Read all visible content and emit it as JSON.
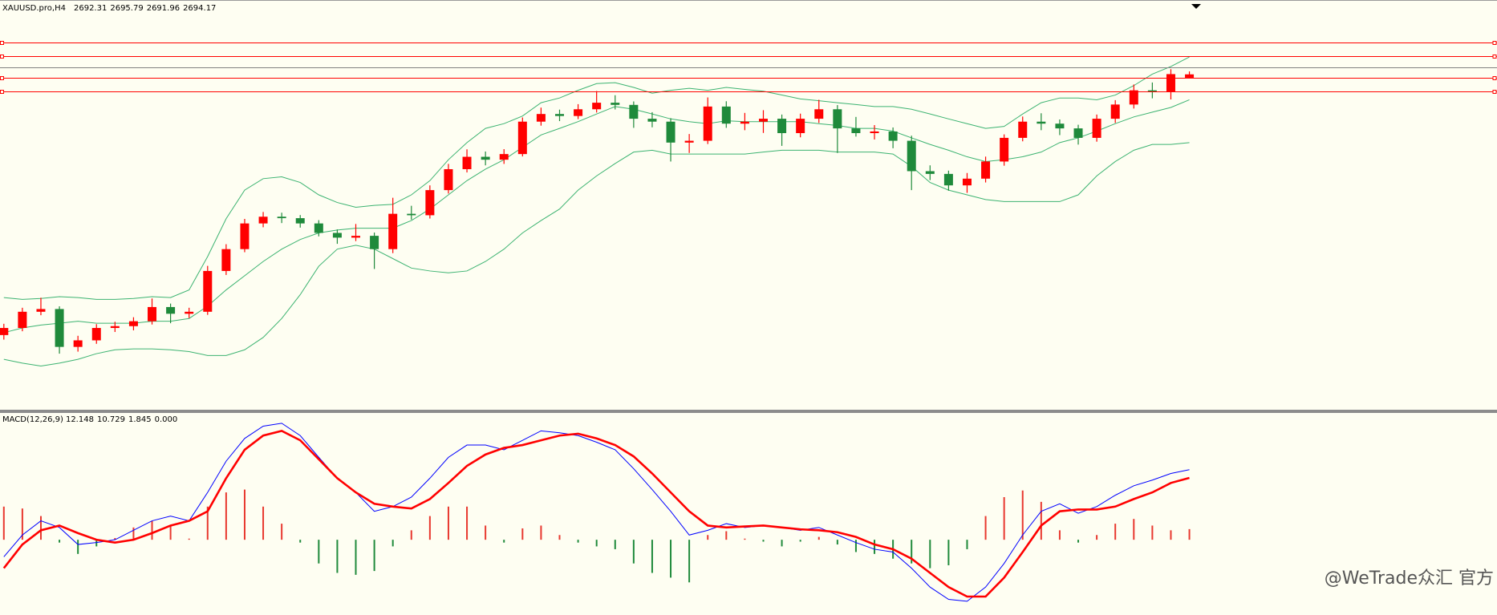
{
  "chart_data": [
    {
      "type": "candlestick",
      "symbol": "XAUUSD.pro,H4",
      "open": [
        2551.0,
        2554.9,
        2563.8,
        2565.3,
        2544.5,
        2548.1,
        2554.9,
        2555.9,
        2558.6,
        2566.4,
        2562.7,
        2563.8,
        2586.2,
        2598.2,
        2612.3,
        2616.0,
        2615.2,
        2612.3,
        2607.1,
        2604.5,
        2605.5,
        2598.2,
        2617.6,
        2616.8,
        2630.6,
        2642.1,
        2648.9,
        2647.3,
        2650.4,
        2668.2,
        2672.4,
        2671.3,
        2675.0,
        2678.6,
        2677.4,
        2669.8,
        2668.2,
        2656.7,
        2657.7,
        2676.5,
        2667.1,
        2668.2,
        2669.8,
        2661.9,
        2669.8,
        2675.0,
        2664.5,
        2661.9,
        2662.8,
        2657.7,
        2641.0,
        2639.5,
        2633.2,
        2636.9,
        2646.3,
        2659.3,
        2668.2,
        2667.1,
        2664.5,
        2659.3,
        2669.8,
        2677.6,
        2685.4,
        2684.6,
        2692.31
      ],
      "high": [
        2557.2,
        2566.0,
        2571.5,
        2566.8,
        2550.6,
        2557.0,
        2558.3,
        2560.8,
        2571.1,
        2568.3,
        2566.0,
        2589.0,
        2600.9,
        2614.8,
        2618.6,
        2618.2,
        2616.9,
        2614.1,
        2609.0,
        2612.0,
        2607.3,
        2626.4,
        2622.0,
        2633.2,
        2645.0,
        2653.0,
        2651.8,
        2653.1,
        2670.5,
        2675.9,
        2674.8,
        2677.8,
        2685.0,
        2682.7,
        2679.3,
        2673.4,
        2670.1,
        2661.4,
        2681.5,
        2679.4,
        2673.0,
        2674.5,
        2672.1,
        2672.6,
        2680.2,
        2677.3,
        2670.8,
        2666.3,
        2665.0,
        2660.5,
        2644.2,
        2641.3,
        2640.0,
        2649.0,
        2661.2,
        2671.0,
        2672.8,
        2669.4,
        2666.5,
        2672.1,
        2680.0,
        2688.6,
        2689.7,
        2697.0,
        2695.79
      ],
      "low": [
        2548.5,
        2553.1,
        2561.9,
        2540.8,
        2541.9,
        2546.2,
        2552.7,
        2553.6,
        2556.8,
        2557.5,
        2560.3,
        2562.1,
        2584.0,
        2596.5,
        2610.2,
        2612.5,
        2610.0,
        2605.2,
        2601.1,
        2602.6,
        2587.3,
        2596.0,
        2614.4,
        2615.0,
        2628.7,
        2640.3,
        2644.2,
        2645.0,
        2649.1,
        2666.0,
        2668.5,
        2669.6,
        2673.2,
        2674.9,
        2664.8,
        2665.1,
        2646.3,
        2651.0,
        2655.9,
        2664.8,
        2663.5,
        2662.0,
        2654.9,
        2659.6,
        2667.5,
        2651.0,
        2660.0,
        2658.4,
        2653.6,
        2630.6,
        2636.1,
        2630.3,
        2629.1,
        2634.8,
        2644.0,
        2657.4,
        2663.5,
        2660.8,
        2655.6,
        2657.2,
        2667.5,
        2675.4,
        2681.0,
        2680.4,
        2691.96
      ],
      "close": [
        2554.9,
        2563.8,
        2565.3,
        2544.5,
        2548.1,
        2554.9,
        2555.9,
        2558.6,
        2566.4,
        2562.7,
        2563.8,
        2586.2,
        2598.2,
        2612.3,
        2616.0,
        2615.2,
        2612.3,
        2607.1,
        2604.5,
        2605.5,
        2598.2,
        2617.6,
        2616.8,
        2630.6,
        2642.1,
        2648.9,
        2647.3,
        2650.4,
        2668.2,
        2672.4,
        2671.3,
        2675.0,
        2678.6,
        2677.4,
        2669.8,
        2668.2,
        2656.7,
        2657.7,
        2676.5,
        2667.1,
        2668.2,
        2669.8,
        2661.9,
        2669.8,
        2675.0,
        2664.5,
        2661.9,
        2662.8,
        2657.7,
        2641.0,
        2639.5,
        2633.2,
        2636.9,
        2646.3,
        2659.3,
        2668.2,
        2667.1,
        2664.5,
        2659.3,
        2669.8,
        2677.6,
        2685.4,
        2684.6,
        2694.3,
        2694.17
      ],
      "up_color": "#ff0000",
      "down_color": "#1f8a3b",
      "bands": {
        "color": "#3cb371",
        "upper": [
          2571.6,
          2570.6,
          2571.1,
          2572.1,
          2571.6,
          2570.6,
          2570.6,
          2571.1,
          2572.1,
          2571.6,
          2575.8,
          2594.1,
          2614.9,
          2630.6,
          2636.9,
          2637.9,
          2634.8,
          2628.0,
          2623.8,
          2621.2,
          2622.2,
          2622.8,
          2628.0,
          2635.8,
          2647.3,
          2656.7,
          2664.5,
          2667.1,
          2671.3,
          2678.6,
          2681.2,
          2685.4,
          2689.1,
          2689.6,
          2687.0,
          2683.8,
          2685.4,
          2686.5,
          2685.4,
          2687.0,
          2685.9,
          2684.9,
          2682.8,
          2680.7,
          2679.7,
          2678.6,
          2677.6,
          2676.5,
          2676.5,
          2675.0,
          2672.4,
          2669.7,
          2667.1,
          2664.5,
          2665.6,
          2672.4,
          2678.6,
          2681.2,
          2681.2,
          2680.2,
          2682.8,
          2688.0,
          2694.3,
          2698.5,
          2703.7
        ],
        "middle": [
          2552.3,
          2554.9,
          2556.5,
          2557.5,
          2558.6,
          2557.5,
          2557.5,
          2557.5,
          2558.6,
          2558.6,
          2560.1,
          2566.9,
          2575.8,
          2583.6,
          2591.4,
          2598.2,
          2603.5,
          2607.1,
          2608.7,
          2609.7,
          2609.7,
          2609.7,
          2613.9,
          2620.2,
          2628.0,
          2635.8,
          2642.1,
          2647.3,
          2654.1,
          2660.9,
          2664.5,
          2668.2,
          2672.4,
          2676.5,
          2675.0,
          2672.4,
          2669.7,
          2668.2,
          2667.1,
          2668.7,
          2668.2,
          2668.2,
          2668.2,
          2668.2,
          2667.1,
          2666.1,
          2664.5,
          2664.5,
          2663.0,
          2659.3,
          2655.7,
          2652.5,
          2648.9,
          2646.3,
          2647.3,
          2648.9,
          2651.5,
          2656.7,
          2659.3,
          2663.0,
          2667.1,
          2670.8,
          2673.4,
          2676.0,
          2680.2
        ],
        "lower": [
          2537.7,
          2535.6,
          2534.0,
          2535.6,
          2537.7,
          2540.8,
          2542.9,
          2543.4,
          2543.4,
          2542.9,
          2541.9,
          2539.8,
          2539.8,
          2542.9,
          2549.7,
          2560.1,
          2573.2,
          2588.8,
          2598.2,
          2600.3,
          2598.2,
          2593.0,
          2587.8,
          2586.2,
          2585.2,
          2586.2,
          2591.4,
          2598.2,
          2607.1,
          2613.9,
          2620.2,
          2630.6,
          2638.4,
          2645.2,
          2651.5,
          2652.5,
          2650.4,
          2650.4,
          2650.4,
          2650.4,
          2650.4,
          2651.5,
          2652.5,
          2652.5,
          2652.5,
          2651.5,
          2651.5,
          2651.5,
          2650.4,
          2643.6,
          2634.8,
          2630.6,
          2628.0,
          2625.4,
          2624.3,
          2624.3,
          2624.3,
          2624.3,
          2628.0,
          2638.4,
          2646.3,
          2652.5,
          2655.7,
          2655.7,
          2656.7
        ]
      },
      "hlines": [
        {
          "value": 2711.5,
          "color": "#ff0000"
        },
        {
          "value": 2704.2,
          "color": "#ff0000"
        },
        {
          "value": 2697.9,
          "color": "#808080"
        },
        {
          "value": 2692.2,
          "color": "#ff0000"
        },
        {
          "value": 2684.9,
          "color": "#ff0000"
        }
      ],
      "ylim": [
        2510,
        2735
      ]
    },
    {
      "type": "macd",
      "label": "MACD(12,26,9)",
      "main": {
        "color": "#0000ff",
        "values": [
          -2.96,
          0.82,
          3.28,
          2.13,
          -0.82,
          -0.49,
          0,
          1.64,
          3.28,
          4.11,
          3.28,
          8.21,
          13.63,
          17.57,
          19.7,
          20.2,
          18.06,
          14.29,
          10.67,
          8.21,
          4.93,
          5.75,
          7.39,
          10.67,
          14.29,
          16.42,
          16.42,
          15.6,
          17.24,
          18.88,
          18.55,
          18.06,
          16.91,
          15.6,
          12.32,
          8.7,
          4.93,
          0.82,
          1.64,
          2.79,
          2.13,
          2.46,
          2.13,
          1.64,
          2.13,
          0.82,
          -0.49,
          -1.64,
          -2.13,
          -4.93,
          -8.21,
          -10.34,
          -10.67,
          -8.21,
          -4.11,
          0.82,
          4.93,
          6.24,
          4.6,
          5.75,
          7.72,
          9.36,
          10.34,
          11.49,
          12.148
        ]
      },
      "signal": {
        "color": "#ff0000",
        "values": [
          -4.93,
          -0.82,
          1.64,
          2.46,
          1.15,
          0,
          -0.49,
          0,
          1.15,
          2.46,
          3.28,
          4.93,
          10.67,
          15.6,
          18.06,
          18.88,
          17.24,
          13.96,
          10.67,
          8.21,
          6.24,
          5.75,
          5.42,
          7.06,
          9.85,
          12.81,
          14.78,
          15.93,
          16.42,
          17.24,
          18.06,
          18.39,
          17.57,
          16.42,
          14.45,
          11.49,
          8.21,
          4.93,
          2.46,
          2.13,
          2.3,
          2.46,
          2.13,
          1.81,
          1.64,
          1.31,
          0.49,
          -0.82,
          -1.64,
          -3.28,
          -5.75,
          -8.21,
          -9.85,
          -9.85,
          -6.57,
          -2.13,
          2.46,
          4.93,
          5.25,
          5.25,
          5.75,
          7.06,
          8.21,
          9.85,
          10.729
        ]
      },
      "histogram": {
        "up_color": "#e8382f",
        "down_color": "#1f8a3b",
        "values": [
          5.75,
          5.42,
          4.11,
          -0.49,
          -2.46,
          -1.15,
          0.3,
          2.13,
          3.28,
          2.46,
          0.2,
          5.75,
          8.21,
          8.7,
          5.75,
          2.79,
          -0.49,
          -4.11,
          -5.75,
          -6.08,
          -5.42,
          -1.15,
          1.64,
          4.11,
          5.75,
          5.75,
          2.46,
          -0.49,
          1.97,
          2.46,
          0.82,
          -0.49,
          -1.15,
          -1.64,
          -4.11,
          -5.75,
          -6.57,
          -7.39,
          0.82,
          1.48,
          0.2,
          -0.33,
          -1.15,
          -0.33,
          0.49,
          -0.82,
          -2.13,
          -2.46,
          -3.28,
          -4.11,
          -4.93,
          -4.43,
          -1.64,
          4.11,
          7.39,
          8.54,
          6.57,
          1.64,
          -0.49,
          0.82,
          2.79,
          3.61,
          2.46,
          1.64,
          1.845
        ]
      },
      "extra": {
        "value": 0,
        "label": "0.000"
      },
      "ylim": [
        -12.77,
        21.71
      ]
    },
    {
      "watermark": "@WeTrade众汇 官方"
    }
  ]
}
